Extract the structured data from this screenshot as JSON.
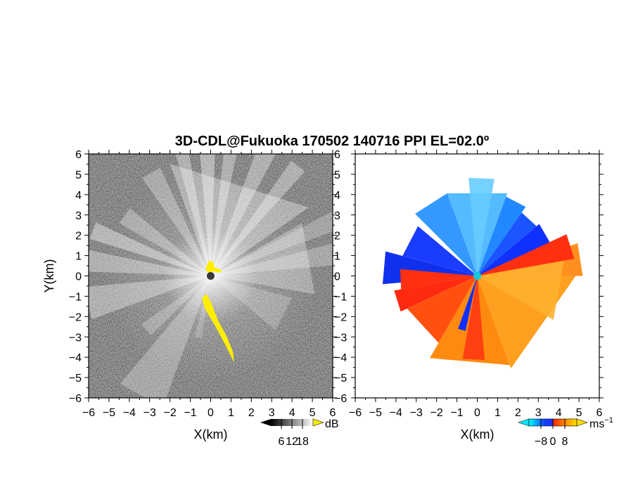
{
  "chart_data": {
    "title": "3D-CDL@Fukuoka 170502 140716 PPI EL=02.0º",
    "panels": [
      {
        "type": "heatmap",
        "name": "intensity",
        "xlabel": "X(km)",
        "ylabel": "Y(km)",
        "xlim": [
          -6,
          6
        ],
        "ylim": [
          -6,
          6
        ],
        "xticks": [
          "−6",
          "−5",
          "−4",
          "−3",
          "−2",
          "−1",
          "0",
          "1",
          "2",
          "3",
          "4",
          "5",
          "6"
        ],
        "yticks": [
          "6",
          "5",
          "4",
          "3",
          "2",
          "1",
          "0",
          "−1",
          "−2",
          "−3",
          "−4",
          "−5",
          "−6"
        ],
        "colorbar": {
          "unit": "dB",
          "ticks": [
            6,
            12,
            18
          ],
          "tick_labels": [
            "6",
            "12",
            "18"
          ],
          "range": [
            0,
            24
          ],
          "colors": [
            "#000000",
            "#ffffff"
          ],
          "high_color": "#ffee00"
        }
      },
      {
        "type": "heatmap",
        "name": "radial-velocity",
        "xlabel": "X(km)",
        "xlim": [
          -6,
          6
        ],
        "ylim": [
          -6,
          6
        ],
        "xticks": [
          "−6",
          "−5",
          "−4",
          "−3",
          "−2",
          "−1",
          "0",
          "1",
          "2",
          "3",
          "4",
          "5",
          "6"
        ],
        "colorbar": {
          "unit": "ms",
          "unit_exponent": "−1",
          "ticks": [
            -8,
            0,
            8
          ],
          "tick_labels": [
            "−8",
            "0",
            "8"
          ],
          "range": [
            -16,
            16
          ],
          "colors": [
            "#00ffff",
            "#0033ff",
            "#ff2200",
            "#ffcc00"
          ]
        }
      }
    ]
  }
}
